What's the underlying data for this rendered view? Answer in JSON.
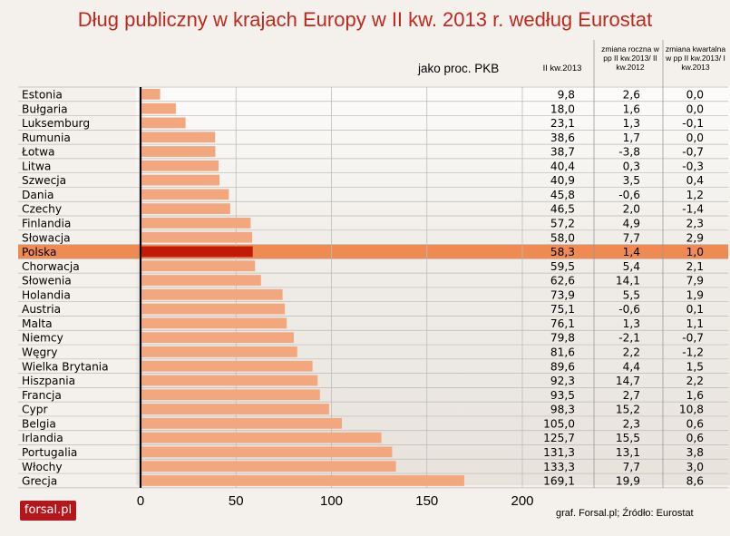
{
  "title": "Dług publiczny w krajach Europy w II kw. 2013 r. według Eurostat",
  "unit_label": "jako proc. PKB",
  "column_headers": {
    "value": "II kw.2013",
    "annual": "zmiana roczna w pp II kw.2013/ II kw.2012",
    "quarterly": "zmiana kwartalna w pp II kw.2013/ I kw.2013"
  },
  "logo_text": "forsal.pl",
  "source_text": "graf. Forsal.pl; Źródło: Eurostat",
  "colors": {
    "bar": "#f2a77f",
    "highlight_row": "#ee8a52",
    "highlight_bar": "#c21a06",
    "title": "#c0281e"
  },
  "chart_data": {
    "type": "bar",
    "orientation": "horizontal",
    "categories": [
      "Estonia",
      "Bułgaria",
      "Luksemburg",
      "Rumunia",
      "Łotwa",
      "Litwa",
      "Szwecja",
      "Dania",
      "Czechy",
      "Finlandia",
      "Słowacja",
      "Polska",
      "Chorwacja",
      "Słowenia",
      "Holandia",
      "Austria",
      "Malta",
      "Niemcy",
      "Węgry",
      "Wielka Brytania",
      "Hiszpania",
      "Francja",
      "Cypr",
      "Belgia",
      "Irlandia",
      "Portugalia",
      "Włochy",
      "Grecja"
    ],
    "values": [
      9.8,
      18.0,
      23.1,
      38.6,
      38.7,
      40.4,
      40.9,
      45.8,
      46.5,
      57.2,
      58.0,
      58.3,
      59.5,
      62.6,
      73.9,
      75.1,
      76.1,
      79.8,
      81.6,
      89.6,
      92.3,
      93.5,
      98.3,
      105.0,
      125.7,
      131.3,
      133.3,
      169.1
    ],
    "value_labels": [
      "9,8",
      "18,0",
      "23,1",
      "38,6",
      "38,7",
      "40,4",
      "40,9",
      "45,8",
      "46,5",
      "57,2",
      "58,0",
      "58,3",
      "59,5",
      "62,6",
      "73,9",
      "75,1",
      "76,1",
      "79,8",
      "81,6",
      "89,6",
      "92,3",
      "93,5",
      "98,3",
      "105,0",
      "125,7",
      "131,3",
      "133,3",
      "169,1"
    ],
    "annual_change_labels": [
      "2,6",
      "1,6",
      "1,3",
      "1,7",
      "-3,8",
      "0,3",
      "3,5",
      "-0,6",
      "2,0",
      "4,9",
      "7,7",
      "1,4",
      "5,4",
      "14,1",
      "5,5",
      "-0,6",
      "1,3",
      "-2,1",
      "2,2",
      "4,4",
      "14,7",
      "2,7",
      "15,2",
      "2,3",
      "15,5",
      "13,1",
      "7,7",
      "19,9"
    ],
    "quarterly_change_labels": [
      "0,0",
      "0,0",
      "-0,1",
      "0,0",
      "-0,7",
      "-0,3",
      "0,4",
      "1,2",
      "-1,4",
      "2,3",
      "2,9",
      "1,0",
      "2,1",
      "7,9",
      "1,9",
      "0,1",
      "1,1",
      "-0,7",
      "-1,2",
      "1,5",
      "2,2",
      "1,6",
      "10,8",
      "0,6",
      "0,6",
      "3,8",
      "3,0",
      "8,6"
    ],
    "highlight": "Polska",
    "xlim": [
      0,
      200
    ],
    "xticks": [
      "0",
      "50",
      "100",
      "150",
      "200"
    ],
    "grid": true
  }
}
